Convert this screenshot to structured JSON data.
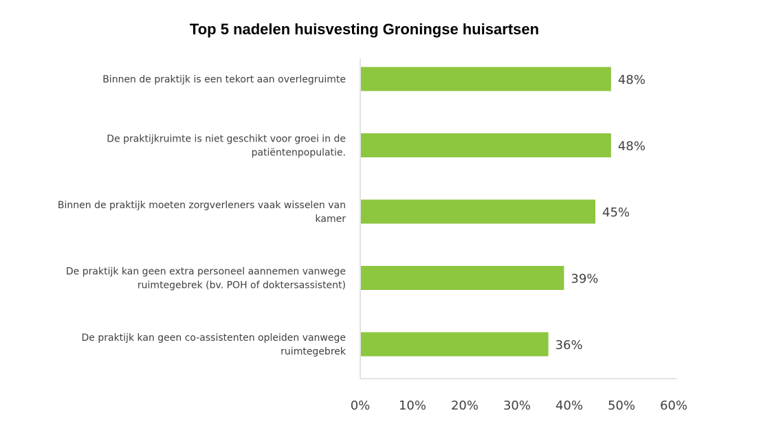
{
  "chart_data": {
    "type": "bar",
    "orientation": "horizontal",
    "title": "Top 5 nadelen huisvesting Groningse huisartsen",
    "categories": [
      [
        "Binnen de praktijk is een tekort aan overlegruimte"
      ],
      [
        "De praktijkruimte is niet geschikt voor groei in de",
        "patiëntenpopulatie."
      ],
      [
        "Binnen de praktijk moeten zorgverleners vaak wisselen van",
        "kamer"
      ],
      [
        "De praktijk kan geen extra personeel aannemen vanwege",
        "ruimtegebrek (bv. POH of doktersassistent)"
      ],
      [
        "De praktijk kan geen co-assistenten opleiden vanwege",
        "ruimtegebrek"
      ]
    ],
    "values": [
      48,
      48,
      45,
      39,
      36
    ],
    "value_labels": [
      "48%",
      "48%",
      "45%",
      "39%",
      "36%"
    ],
    "xlim": [
      0,
      60
    ],
    "xticks": [
      "0%",
      "10%",
      "20%",
      "30%",
      "40%",
      "50%",
      "60%"
    ],
    "grid": false,
    "bar_color": "#8DC63F"
  }
}
